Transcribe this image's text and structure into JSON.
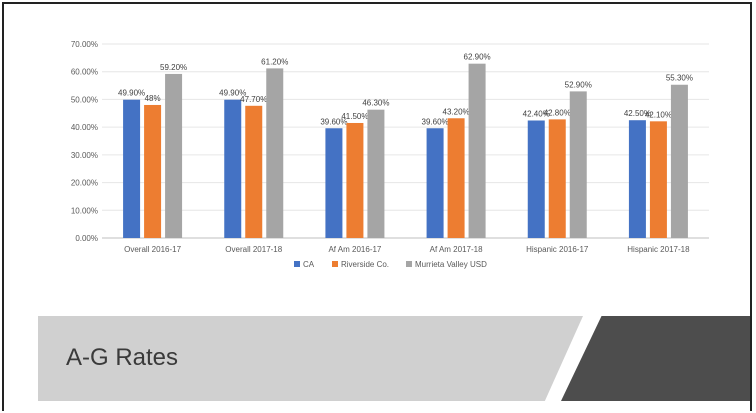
{
  "banner": {
    "title": "A-G Rates"
  },
  "colors": {
    "CA": "#4472c4",
    "Riverside Co.": "#ed7d31",
    "Murrieta Valley USD": "#a5a5a5"
  },
  "chart_data": {
    "type": "bar",
    "categories": [
      "Overall 2016-17",
      "Overall 2017-18",
      "Af Am 2016-17",
      "Af Am 2017-18",
      "Hispanic 2016-17",
      "Hispanic 2017-18"
    ],
    "series": [
      {
        "name": "CA",
        "values": [
          49.9,
          49.9,
          39.6,
          39.6,
          42.4,
          42.5
        ],
        "labels": [
          "49.90%",
          "49.90%",
          "39.60%",
          "39.60%",
          "42.40%",
          "42.50%"
        ]
      },
      {
        "name": "Riverside Co.",
        "values": [
          48.0,
          47.7,
          41.5,
          43.2,
          42.8,
          42.1
        ],
        "labels": [
          "48%",
          "47.70%",
          "41.50%",
          "43.20%",
          "42.80%",
          "42.10%"
        ]
      },
      {
        "name": "Murrieta Valley USD",
        "values": [
          59.2,
          61.2,
          46.3,
          62.9,
          52.9,
          55.3
        ],
        "labels": [
          "59.20%",
          "61.20%",
          "46.30%",
          "62.90%",
          "52.90%",
          "55.30%"
        ]
      }
    ],
    "yticks": [
      "0.00%",
      "10.00%",
      "20.00%",
      "30.00%",
      "40.00%",
      "50.00%",
      "60.00%",
      "70.00%"
    ],
    "ylim": [
      0,
      70
    ],
    "legend_position": "bottom",
    "grid": true
  }
}
